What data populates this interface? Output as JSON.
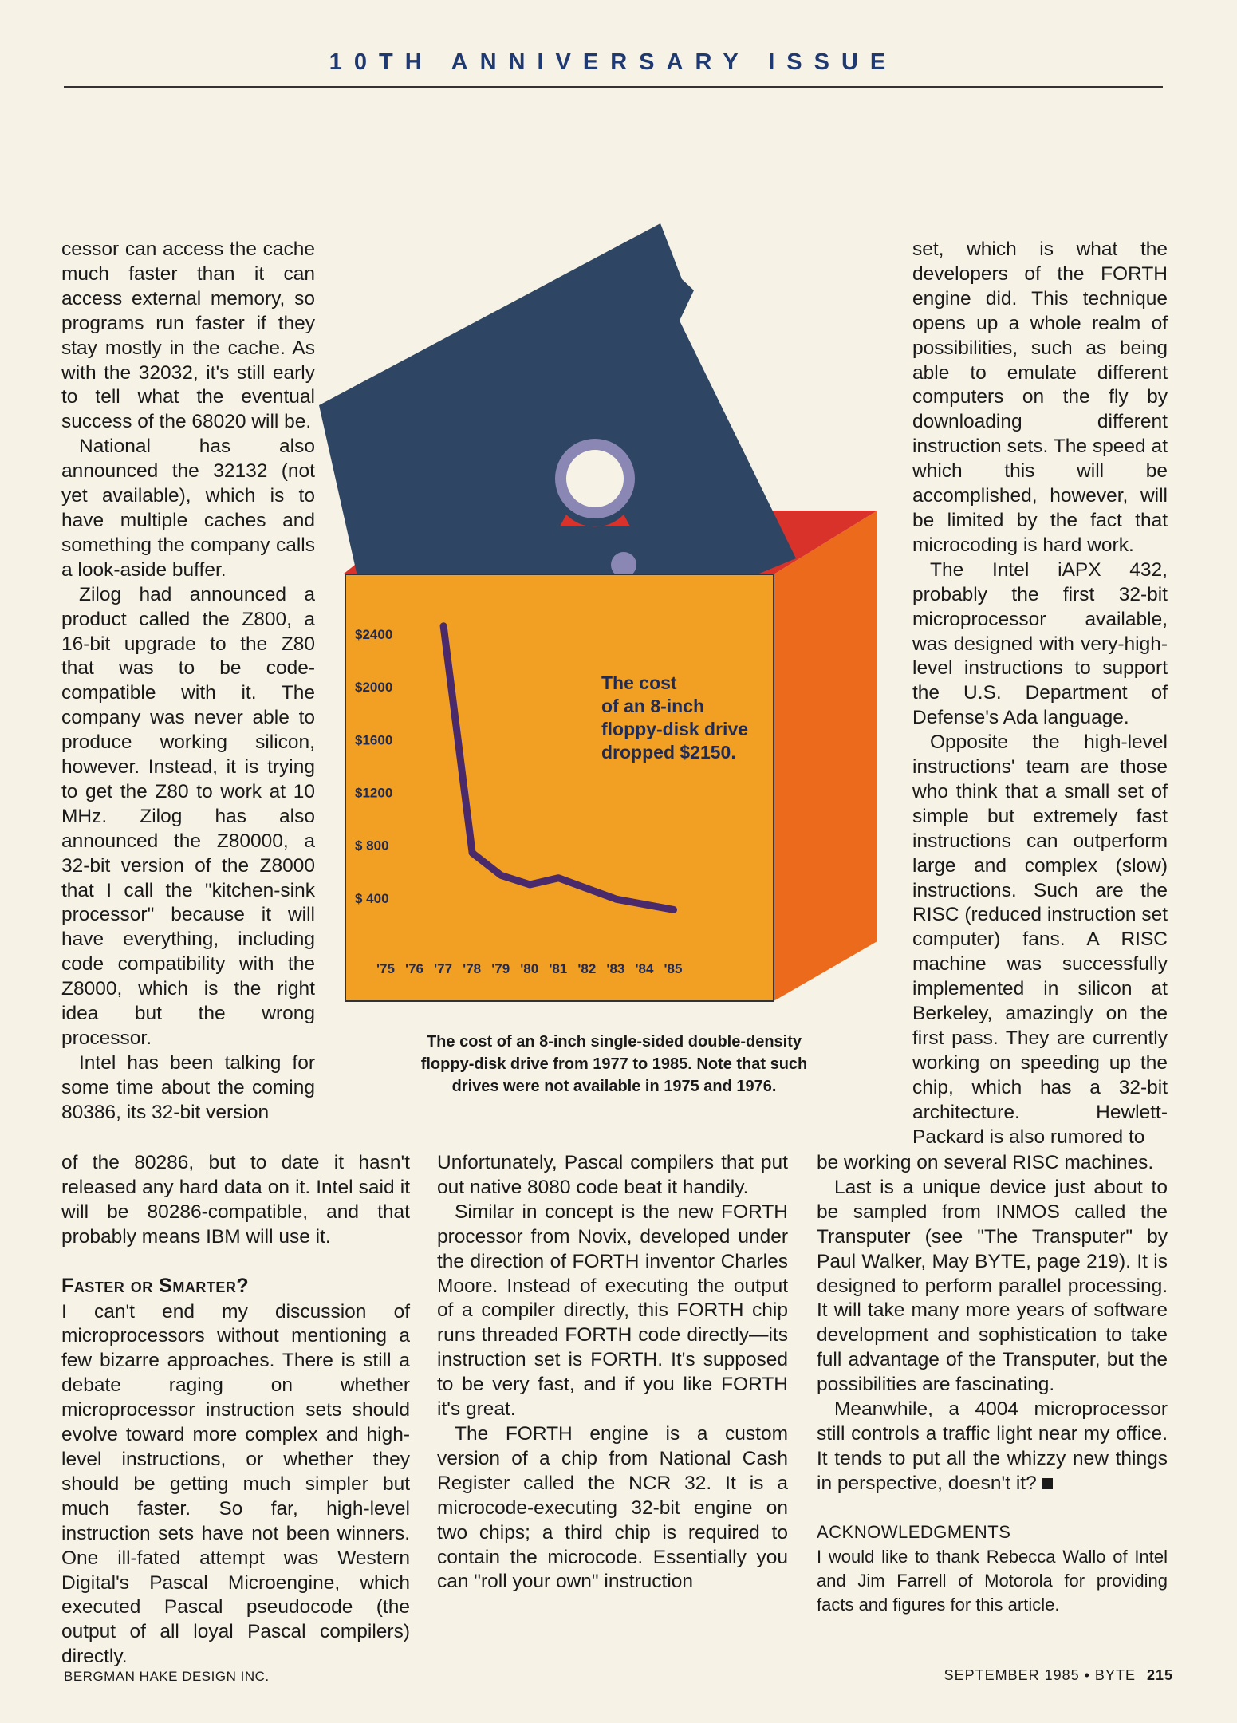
{
  "header": {
    "title": "10TH ANNIVERSARY ISSUE"
  },
  "col_left": {
    "p1": "cessor can access the cache much faster than it can access external memory, so programs run faster if they stay mostly in the cache. As with the 32032, it's still early to tell what the eventual success of the 68020 will be.",
    "p2": "National has also announced the 32132 (not yet available), which is to have multiple caches and something the company calls a look-aside buffer.",
    "p3": "Zilog had announced a product called the Z800, a 16-bit upgrade to the Z80 that was to be code-compatible with it. The company was never able to produce working silicon, however. Instead, it is trying to get the Z80 to work at 10 MHz. Zilog has also announced the Z80000, a 32-bit version of the Z8000 that I call the \"kitchen-sink processor\" because it will have everything, including code compatibility with the Z8000, which is the right idea but the wrong processor.",
    "p4": "Intel has been talking for some time about the coming 80386, its 32-bit version",
    "p4b": "of the 80286, but to date it hasn't released any hard data on it. Intel said it will be 80286-compatible, and that probably means IBM will use it.",
    "heading": "Faster or Smarter?",
    "p5": "I can't end my discussion of microprocessors without mentioning a few bizarre approaches. There is still a debate raging on whether microprocessor instruction sets should evolve toward more complex and high-level instructions, or whether they should be getting much simpler but much faster. So far, high-level instruction sets have not been winners. One ill-fated attempt was Western Digital's Pascal Microengine, which executed Pascal pseudocode (the output of all loyal Pascal compilers) directly."
  },
  "col_mid": {
    "p1": "Unfortunately, Pascal compilers that put out native 8080 code beat it handily.",
    "p2": "Similar in concept is the new FORTH processor from Novix, developed under the direction of FORTH inventor Charles Moore. Instead of executing the output of a compiler directly, this FORTH chip runs threaded FORTH code directly—its instruction set is FORTH. It's supposed to be very fast, and if you like FORTH it's great.",
    "p3": "The FORTH engine is a custom version of a chip from National Cash Register called the NCR 32. It is a microcode-executing 32-bit engine on two chips; a third chip is required to contain the microcode. Essentially you can \"roll your own\" instruction"
  },
  "col_right": {
    "p1": "set, which is what the developers of the FORTH engine did. This technique opens up a whole realm of possibilities, such as being able to emulate different computers on the fly by downloading different instruction sets. The speed at which this will be accomplished, however, will be limited by the fact that microcoding is hard work.",
    "p2": "The Intel iAPX 432, probably the first 32-bit microprocessor available, was designed with very-high-level instructions to support the U.S. Department of Defense's Ada language.",
    "p3": "Opposite the high-level instructions' team are those who think that a small set of simple but extremely fast instructions can outperform large and complex (slow) instructions. Such are the RISC (reduced instruction set computer) fans. A RISC machine was successfully implemented in silicon at Berkeley, amazingly on the first pass. They are currently working on speeding up the chip, which has a 32-bit architecture. Hewlett-Packard is also rumored to",
    "p3b": "be working on several RISC machines.",
    "p4": "Last is a unique device just about to be sampled from INMOS called the Transputer (see \"The Transputer\" by Paul Walker, May BYTE, page 219). It is designed to perform parallel processing. It will take many more years of software development and sophistication to take full advantage of the Transputer, but the possibilities are fascinating.",
    "p5": "Meanwhile, a 4004 microprocessor still controls a traffic light near my office. It tends to put all the whizzy new things in perspective, doesn't it?",
    "ack_title": "ACKNOWLEDGMENTS",
    "ack_body": "I would like to thank Rebecca Wallo of Intel and Jim Farrell of Motorola for providing facts and figures for this article."
  },
  "figure": {
    "annotation": [
      "The cost",
      "of an 8-inch",
      "floppy-disk drive",
      "dropped $2150."
    ],
    "caption": "The cost of an 8-inch single-sided double-density floppy-disk drive from 1977 to 1985. Note that such drives were not available in 1975 and 1976.",
    "colors": {
      "disk": "#2e4663",
      "box_front": "#f2a023",
      "box_side": "#ec6a1c",
      "line": "#4a2a6a",
      "red": "#d9322a",
      "hub": "#8a87b4"
    }
  },
  "chart_data": {
    "type": "line",
    "title": "",
    "xlabel": "",
    "ylabel": "",
    "categories": [
      "'75",
      "'76",
      "'77",
      "'78",
      "'79",
      "'80",
      "'81",
      "'82",
      "'83",
      "'84",
      "'85"
    ],
    "y_tick_labels": [
      "$2400",
      "$2000",
      "$1600",
      "$1200",
      "$ 800",
      "$ 400"
    ],
    "y_tick_values": [
      2400,
      2000,
      1600,
      1200,
      800,
      400
    ],
    "ylim": [
      0,
      2600
    ],
    "x": [
      "'77",
      "'78",
      "'79",
      "'80",
      "'81",
      "'82",
      "'83",
      "'84",
      "'85"
    ],
    "values": [
      2450,
      730,
      560,
      490,
      540,
      460,
      380,
      340,
      300
    ],
    "grid": false,
    "legend": "none"
  },
  "footer": {
    "left": "BERGMAN HAKE DESIGN INC.",
    "right": "SEPTEMBER 1985 • BYTE",
    "page": "215"
  }
}
